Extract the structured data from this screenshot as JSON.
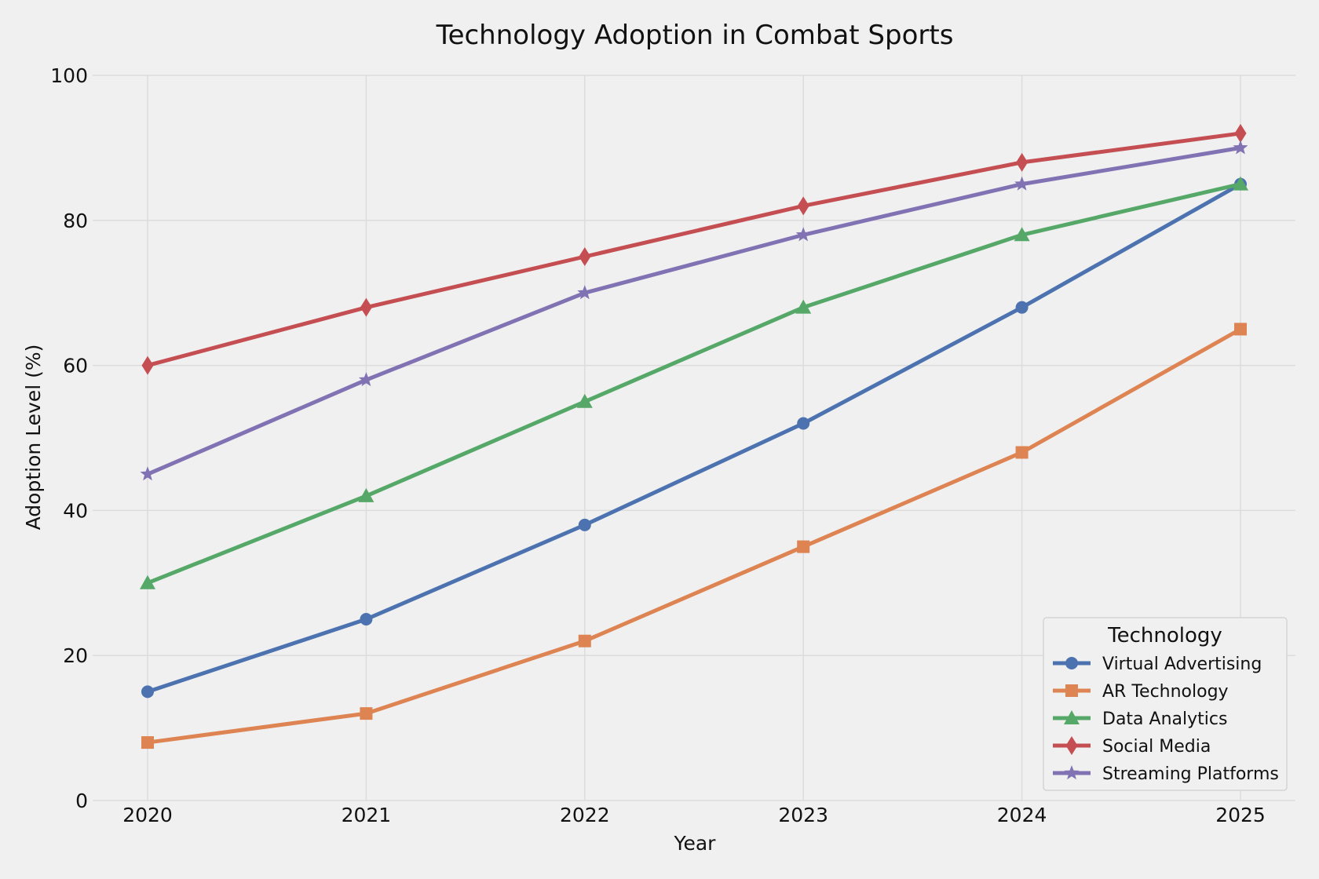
{
  "chart_data": {
    "type": "line",
    "title": "Technology Adoption in Combat Sports",
    "xlabel": "Year",
    "ylabel": "Adoption Level (%)",
    "x": [
      2020,
      2021,
      2022,
      2023,
      2024,
      2025
    ],
    "x_tick_labels": [
      "2020",
      "2021",
      "2022",
      "2023",
      "2024",
      "2025"
    ],
    "ylim": [
      0,
      100
    ],
    "y_ticks": [
      0,
      20,
      40,
      60,
      80,
      100
    ],
    "y_tick_labels": [
      "0",
      "20",
      "40",
      "60",
      "80",
      "100"
    ],
    "grid": true,
    "legend": {
      "title": "Technology",
      "position": "lower-right"
    },
    "series": [
      {
        "name": "Virtual Advertising",
        "values": [
          15,
          25,
          38,
          52,
          68,
          85
        ],
        "color": "#4c72b0",
        "marker": "circle"
      },
      {
        "name": "AR Technology",
        "values": [
          8,
          12,
          22,
          35,
          48,
          65
        ],
        "color": "#dd8452",
        "marker": "square"
      },
      {
        "name": "Data Analytics",
        "values": [
          30,
          42,
          55,
          68,
          78,
          85
        ],
        "color": "#55a868",
        "marker": "triangle"
      },
      {
        "name": "Social Media",
        "values": [
          60,
          68,
          75,
          82,
          88,
          92
        ],
        "color": "#c44e52",
        "marker": "diamond"
      },
      {
        "name": "Streaming Platforms",
        "values": [
          45,
          58,
          70,
          78,
          85,
          90
        ],
        "color": "#8172b3",
        "marker": "star"
      }
    ]
  }
}
